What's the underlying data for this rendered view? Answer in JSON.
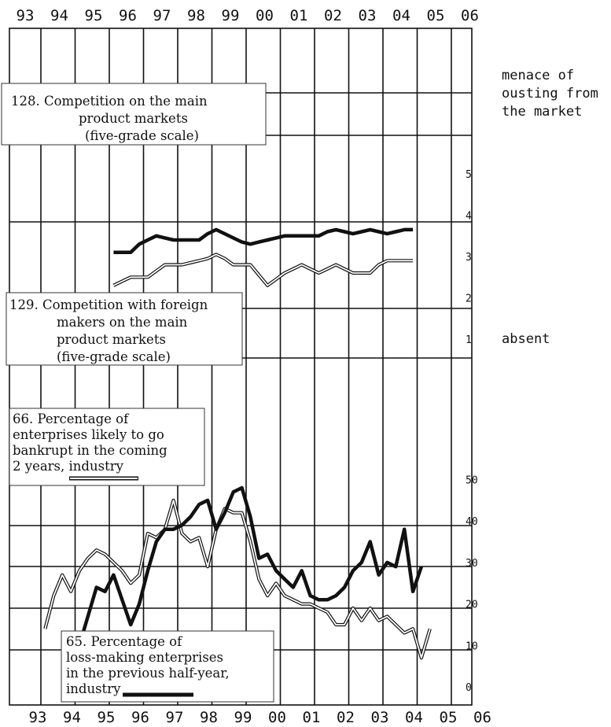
{
  "chart_data": [
    {
      "type": "line",
      "title": "",
      "x": [
        "95Q1",
        "95Q2",
        "95Q3",
        "95Q4",
        "96Q1",
        "96Q2",
        "96Q3",
        "96Q4",
        "97Q1",
        "97Q2",
        "97Q3",
        "97Q4",
        "98Q1",
        "98Q2",
        "98Q3",
        "98Q4",
        "99Q1",
        "99Q2",
        "99Q3",
        "99Q4",
        "00Q1",
        "00Q2",
        "00Q3",
        "00Q4",
        "01Q1",
        "01Q2",
        "01Q3",
        "01Q4",
        "02Q1",
        "02Q2",
        "02Q3",
        "02Q4",
        "03Q1",
        "03Q2",
        "03Q3",
        "03Q4"
      ],
      "series": [
        {
          "name": "128. Competition on the main product markets (five-grade scale)",
          "style": "solid",
          "values": [
            3.1,
            3.1,
            3.1,
            3.3,
            3.4,
            3.5,
            3.45,
            3.4,
            3.4,
            3.4,
            3.4,
            3.55,
            3.65,
            3.55,
            3.45,
            3.35,
            3.3,
            3.35,
            3.4,
            3.45,
            3.5,
            3.5,
            3.5,
            3.5,
            3.5,
            3.6,
            3.65,
            3.6,
            3.55,
            3.6,
            3.65,
            3.6,
            3.55,
            3.6,
            3.65,
            3.65
          ]
        },
        {
          "name": "129. Competition with foreign makers on the main product markets (five-grade scale)",
          "style": "double",
          "values": [
            2.3,
            2.4,
            2.5,
            2.5,
            2.5,
            2.65,
            2.8,
            2.8,
            2.8,
            2.85,
            2.9,
            2.95,
            3.05,
            2.95,
            2.8,
            2.8,
            2.8,
            2.55,
            2.3,
            2.45,
            2.6,
            2.7,
            2.8,
            2.7,
            2.6,
            2.7,
            2.8,
            2.7,
            2.6,
            2.6,
            2.6,
            2.8,
            2.9,
            2.9,
            2.9,
            2.9
          ]
        }
      ],
      "ylim": [
        1,
        5
      ],
      "y_ticks": [
        "1",
        "2",
        "3",
        "4",
        "5"
      ],
      "y_side_labels": {
        "top": [
          "menace of",
          "ousting from",
          "the market"
        ],
        "bottom": "absent"
      }
    },
    {
      "type": "line",
      "title": "",
      "x": [
        "93Q1",
        "93Q2",
        "93Q3",
        "93Q4",
        "94Q1",
        "94Q2",
        "94Q3",
        "94Q4",
        "95Q1",
        "95Q2",
        "95Q3",
        "95Q4",
        "96Q1",
        "96Q2",
        "96Q3",
        "96Q4",
        "97Q1",
        "97Q2",
        "97Q3",
        "97Q4",
        "98Q1",
        "98Q2",
        "98Q3",
        "98Q4",
        "99Q1",
        "99Q2",
        "99Q3",
        "99Q4",
        "00Q1",
        "00Q2",
        "00Q3",
        "00Q4",
        "01Q1",
        "01Q2",
        "01Q3",
        "01Q4",
        "02Q1",
        "02Q2",
        "02Q3",
        "02Q4",
        "03Q1",
        "03Q2",
        "03Q3",
        "03Q4",
        "04Q1",
        "04Q2"
      ],
      "series": [
        {
          "name": "66. Percentage of enterprises likely to go bankrupt in the coming 2 years, industry",
          "style": "double",
          "values": [
            14,
            22,
            27,
            23,
            28,
            31,
            33,
            32,
            30,
            28,
            25,
            27,
            37,
            36,
            38,
            45,
            37,
            35,
            36,
            29,
            38,
            43,
            42,
            42,
            35,
            26,
            22,
            25,
            22,
            21,
            20,
            20,
            19,
            18,
            15,
            15,
            19,
            16,
            19,
            16,
            17,
            15,
            13,
            14,
            7,
            14
          ]
        },
        {
          "name": "65. Percentage of loss-making enterprises in the previous half-year, industry",
          "style": "solid",
          "values": [
            null,
            null,
            null,
            null,
            10,
            17,
            24,
            23,
            27,
            21,
            15,
            20,
            28,
            35,
            38,
            38,
            39,
            41,
            44,
            45,
            38,
            42,
            47,
            48,
            41,
            31,
            32,
            28,
            26,
            24,
            28,
            22,
            21,
            21,
            22,
            24,
            28,
            30,
            35,
            27,
            30,
            29,
            38,
            23,
            29,
            null
          ]
        }
      ],
      "ylim": [
        0,
        50
      ],
      "y_ticks": [
        "0",
        "10",
        "20",
        "30",
        "40",
        "50"
      ]
    }
  ],
  "axis": {
    "years_top": [
      "93",
      "94",
      "95",
      "96",
      "97",
      "98",
      "99",
      "00",
      "01",
      "02",
      "03",
      "04",
      "05",
      "06"
    ],
    "years_bottom": [
      "93",
      "94",
      "95",
      "96",
      "97",
      "98",
      "99",
      "00",
      "01",
      "02",
      "03",
      "04",
      "05",
      "06"
    ]
  },
  "labels": {
    "label128": [
      "128. Competition on the main",
      "product markets",
      "(five-grade scale)"
    ],
    "label129": [
      "129. Competition with foreign",
      "makers on the main",
      "product markets",
      "(five-grade scale)"
    ],
    "label66": [
      "66. Percentage of",
      "enterprises likely to go",
      "bankrupt in the coming",
      "2 years, industry"
    ],
    "label65": [
      "65. Percentage of",
      "loss-making enterprises",
      "in the previous half-year,",
      "industry"
    ]
  },
  "colors": {
    "ink": "#111111",
    "background": "#ffffff"
  }
}
